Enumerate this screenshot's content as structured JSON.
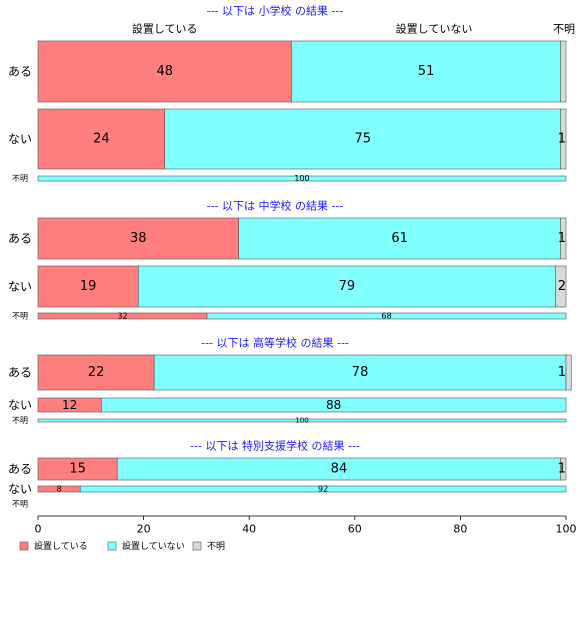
{
  "chart_data": {
    "type": "bar",
    "orientation": "horizontal",
    "stacked": true,
    "xlim": [
      0,
      100
    ],
    "x_ticks": [
      "0",
      "20",
      "40",
      "60",
      "80",
      "100"
    ],
    "column_headers": [
      "設置している",
      "設置していない",
      "不明"
    ],
    "legend": {
      "position": "bottom-left",
      "items": [
        {
          "label": "設置している",
          "color": "#ff7f7f"
        },
        {
          "label": "設置していない",
          "color": "#80ffff"
        },
        {
          "label": "不明",
          "color": "#d9d9d9"
        }
      ]
    },
    "series_colors": [
      "#ff7f7f",
      "#80ffff",
      "#d9d9d9"
    ],
    "panels": [
      {
        "title": "--- 以下は 小学校 の結果 ---",
        "rows": [
          {
            "label": "ある",
            "values": [
              48,
              51,
              1
            ],
            "labels": [
              "48",
              "51",
              ""
            ]
          },
          {
            "label": "ない",
            "values": [
              24,
              75,
              1
            ],
            "labels": [
              "24",
              "75",
              "1"
            ]
          },
          {
            "label": "不明",
            "values": [
              0,
              100,
              0
            ],
            "labels": [
              "",
              "100",
              ""
            ]
          }
        ]
      },
      {
        "title": "--- 以下は 中学校 の結果 ---",
        "rows": [
          {
            "label": "ある",
            "values": [
              38,
              61,
              1
            ],
            "labels": [
              "38",
              "61",
              "1"
            ]
          },
          {
            "label": "ない",
            "values": [
              19,
              79,
              2
            ],
            "labels": [
              "19",
              "79",
              "2"
            ]
          },
          {
            "label": "不明",
            "values": [
              32,
              68,
              0
            ],
            "labels": [
              "32",
              "68",
              ""
            ]
          }
        ]
      },
      {
        "title": "--- 以下は 高等学校 の結果 ---",
        "rows": [
          {
            "label": "ある",
            "values": [
              22,
              78,
              1
            ],
            "labels": [
              "22",
              "78",
              "1"
            ]
          },
          {
            "label": "ない",
            "values": [
              12,
              88,
              0
            ],
            "labels": [
              "12",
              "88",
              ""
            ]
          },
          {
            "label": "不明",
            "values": [
              0,
              100,
              0
            ],
            "labels": [
              "",
              "100",
              ""
            ]
          }
        ]
      },
      {
        "title": "--- 以下は 特別支援学校 の結果 ---",
        "rows": [
          {
            "label": "ある",
            "values": [
              15,
              84,
              1
            ],
            "labels": [
              "15",
              "84",
              "1"
            ]
          },
          {
            "label": "ない",
            "values": [
              8,
              92,
              0
            ],
            "labels": [
              "8",
              "92",
              ""
            ]
          },
          {
            "label": "不明",
            "values": [
              0,
              0,
              0
            ],
            "labels": [
              "",
              "",
              ""
            ]
          }
        ]
      }
    ]
  }
}
